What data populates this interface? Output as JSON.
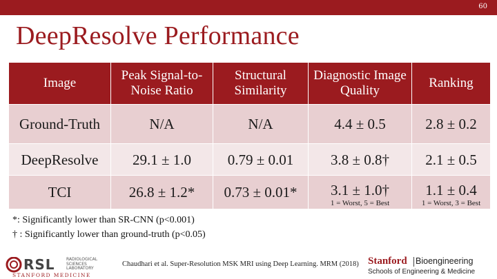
{
  "slide": {
    "number": "60",
    "title": "DeepResolve Performance"
  },
  "table": {
    "headers": [
      "Image",
      "Peak Signal-to-Noise Ratio",
      "Structural Similarity",
      "Diagnostic Image Quality",
      "Ranking"
    ],
    "rows": [
      {
        "image": "Ground-Truth",
        "psnr": "N/A",
        "ssim": "N/A",
        "quality": "4.4 ± 0.5",
        "ranking": "2.8 ± 0.2"
      },
      {
        "image": "DeepResolve",
        "psnr": "29.1 ± 1.0",
        "ssim": "0.79 ± 0.01",
        "quality": "3.8 ± 0.8†",
        "ranking": "2.1 ± 0.5"
      },
      {
        "image": "TCI",
        "psnr": "26.8 ± 1.2*",
        "ssim": "0.73 ± 0.01*",
        "quality": "3.1 ± 1.0†",
        "ranking": "1.1 ± 0.4"
      }
    ],
    "quality_scale_note": "1 = Worst, 5 = Best",
    "ranking_scale_note": "1 = Worst, 3 = Best"
  },
  "footnotes": {
    "asterisk": "*: Significantly lower than SR-CNN (p<0.001)",
    "dagger": "† : Significantly lower than ground-truth (p<0.05)"
  },
  "citation": "Chaudhari et al. Super-Resolution MSK MRI using Deep Learning. MRM (2018)",
  "logos": {
    "rsl": {
      "abbrev": "RSL",
      "subtitle_lines": [
        "RADIOLOGICAL",
        "SCIENCES",
        "LABORATORY"
      ],
      "tagline": "STANFORD MEDICINE"
    },
    "stanford": {
      "name": "Stanford",
      "department": "Bioengineering",
      "schools": "Schools of Engineering & Medicine"
    }
  },
  "colors": {
    "brand_red": "#9b1b1f",
    "row_alt_dark": "#e8cfd1",
    "row_alt_light": "#f3e7e8"
  }
}
